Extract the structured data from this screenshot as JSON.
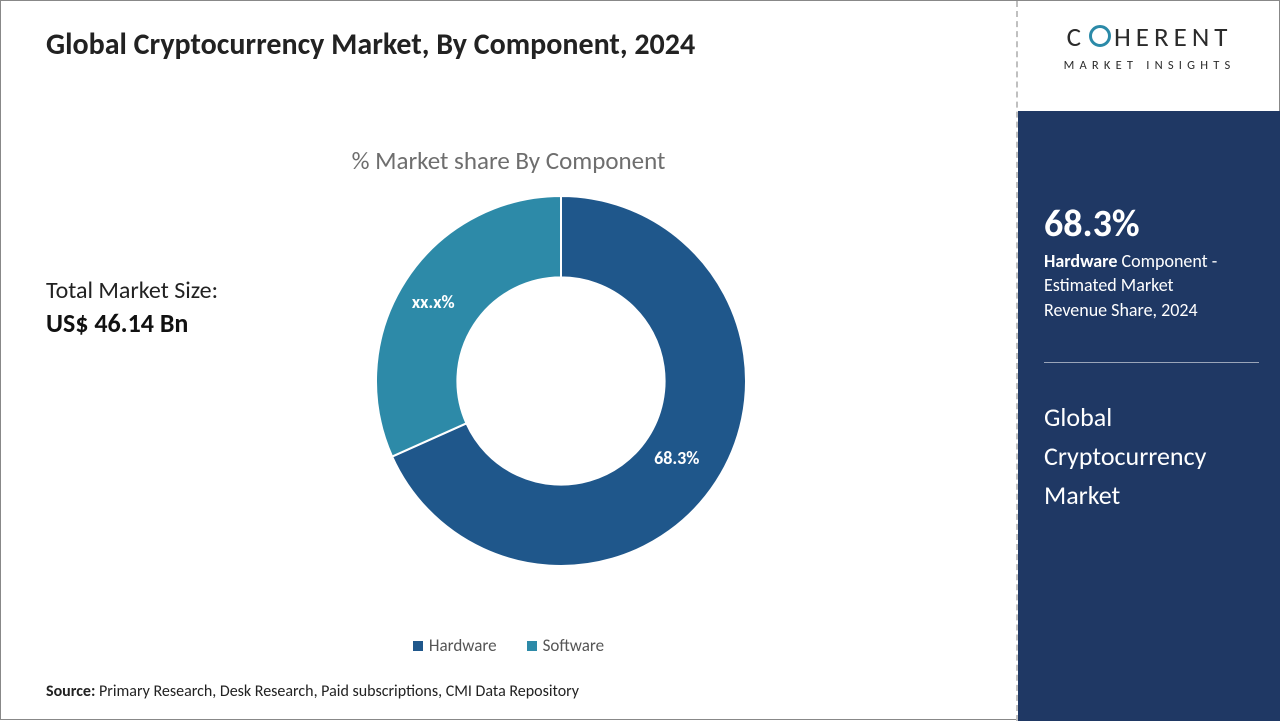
{
  "title": "Global Cryptocurrency Market, By Component, 2024",
  "chart_title": "% Market share By Component",
  "market_size": {
    "label": "Total Market Size:",
    "value": "US$ 46.14 Bn"
  },
  "donut": {
    "type": "donut",
    "inner_radius_ratio": 0.56,
    "background": "#ffffff",
    "slices": [
      {
        "name": "Hardware",
        "value": 68.3,
        "label": "68.3%",
        "color": "#1f578b"
      },
      {
        "name": "Software",
        "value": 31.7,
        "label": "xx.x%",
        "color": "#2d8aa8"
      }
    ],
    "start_angle_deg": 0,
    "label_color": "#ffffff",
    "label_fontsize": 18
  },
  "legend": {
    "items": [
      {
        "label": "Hardware",
        "swatch": "#1f578b"
      },
      {
        "label": "Software",
        "swatch": "#2d8aa8"
      }
    ],
    "text_color": "#555555",
    "fontsize": 17
  },
  "source": {
    "label": "Source:",
    "text": "Primary Research, Desk Research, Paid subscriptions, CMI Data Repository"
  },
  "brand": {
    "name_prefix": "C",
    "name_suffix": "HERENT",
    "subtitle": "MARKET INSIGHTS",
    "accent_color": "#2b8aa8",
    "text_color": "#2b2b2b"
  },
  "panel": {
    "bg_color": "#1f3864",
    "stat_pct": "68.3%",
    "stat_line_bold": "Hardware",
    "stat_line_rest_1": " Component -",
    "stat_line_2": "Estimated Market",
    "stat_line_3": "Revenue Share, 2024",
    "name_line_1": "Global",
    "name_line_2": "Cryptocurrency",
    "name_line_3": "Market"
  }
}
